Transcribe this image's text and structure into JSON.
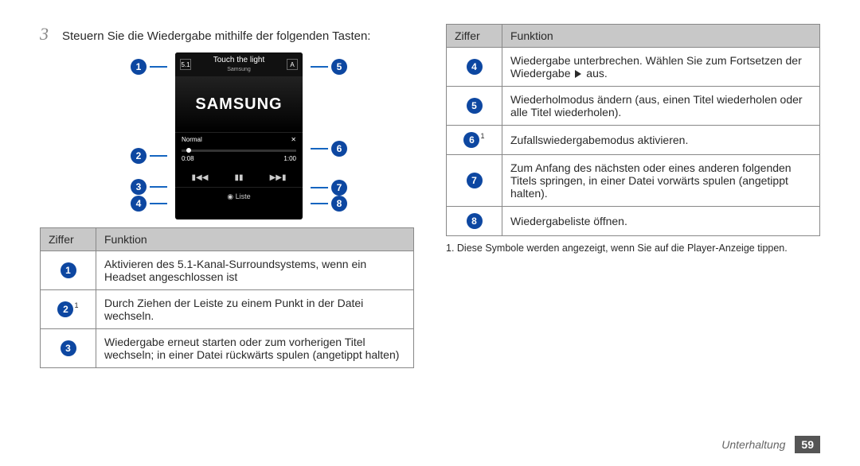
{
  "step": {
    "number": "3",
    "text": "Steuern Sie die Wiedergabe mithilfe der folgenden Tasten:"
  },
  "phone": {
    "top_title": "Touch the light",
    "top_sub": "Samsung",
    "logo": "SAMSUNG",
    "mode_left": "Normal",
    "shuffle": "✕",
    "time_left": "0:08",
    "time_right": "1:00",
    "ctrl_prev": "▮◀◀",
    "ctrl_play": "▮▮",
    "ctrl_next": "▶▶▮",
    "bottom_icon": "◉",
    "bottom_label": "Liste"
  },
  "callouts_left": {
    "c1": "1",
    "c2": "2",
    "c3": "3",
    "c4": "4"
  },
  "callouts_right": {
    "c5": "5",
    "c6": "6",
    "c7": "7",
    "c8": "8"
  },
  "table_headers": {
    "col1": "Ziffer",
    "col2": "Funktion"
  },
  "left_rows": [
    {
      "n": "1",
      "sup": "",
      "text": "Aktivieren des 5.1-Kanal-Surroundsystems, wenn ein Headset angeschlossen ist"
    },
    {
      "n": "2",
      "sup": "1",
      "text": "Durch Ziehen der Leiste zu einem Punkt in der Datei wechseln."
    },
    {
      "n": "3",
      "sup": "",
      "text": "Wiedergabe erneut starten oder zum vorherigen Titel wechseln; in einer Datei rückwärts spulen (angetippt halten)"
    }
  ],
  "right_rows": [
    {
      "n": "4",
      "sup": "",
      "pre": "Wiedergabe unterbrechen. Wählen Sie zum Fortsetzen der Wiedergabe ",
      "tri": true,
      "post": " aus."
    },
    {
      "n": "5",
      "sup": "",
      "text": "Wiederholmodus ändern (aus, einen Titel wiederholen oder alle Titel wiederholen)."
    },
    {
      "n": "6",
      "sup": "1",
      "text": "Zufallswiedergabemodus aktivieren."
    },
    {
      "n": "7",
      "sup": "",
      "text": "Zum Anfang des nächsten oder eines anderen folgenden Titels springen, in einer Datei vorwärts spulen (angetippt halten)."
    },
    {
      "n": "8",
      "sup": "",
      "text": "Wiedergabeliste öffnen."
    }
  ],
  "footnote": "1. Diese Symbole werden angezeigt, wenn Sie auf die Player-Anzeige tippen.",
  "footer": {
    "section": "Unterhaltung",
    "page": "59"
  }
}
